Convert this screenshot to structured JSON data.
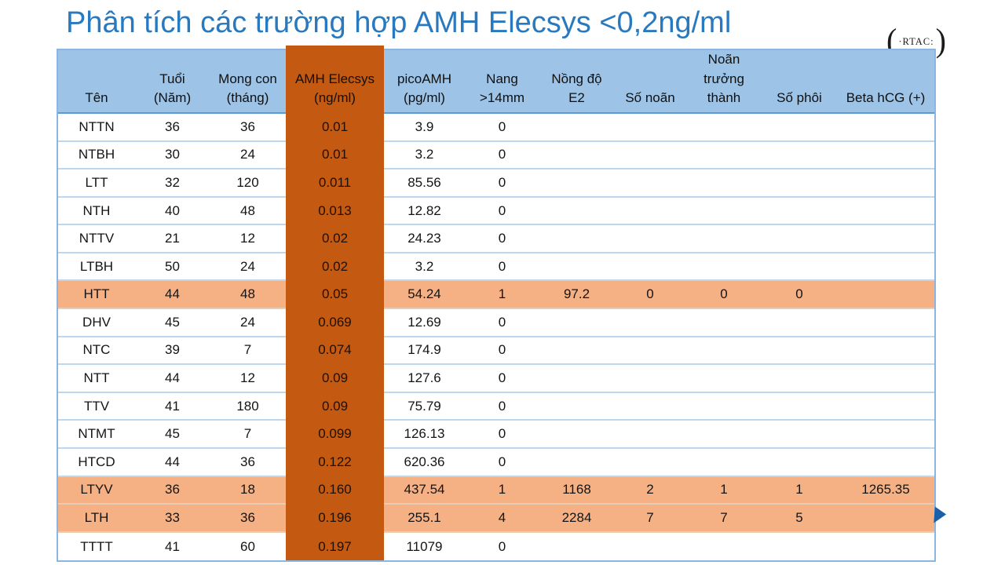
{
  "title": "Phân tích các trường hợp AMH Elecsys <0,2ng/ml",
  "logo": {
    "left_paren": "(",
    "text": "·RTAC:",
    "right_paren": ")"
  },
  "colors": {
    "title": "#2979BF",
    "header_bg": "#9DC3E6",
    "amh_column_bg": "#C45911",
    "highlight_row_bg": "#F5B183",
    "table_border": "#8CB5DF",
    "row_separator": "#BDD7EE",
    "header_separator": "#5B9BD5",
    "arrow": "#1C5FA9"
  },
  "table": {
    "columns": [
      {
        "id": "ten",
        "label": "Tên"
      },
      {
        "id": "tuoi-nam",
        "label": "Tuổi\n(Năm)"
      },
      {
        "id": "mong-con-thang",
        "label": "Mong con\n(tháng)"
      },
      {
        "id": "amh-elecsys",
        "label": "AMH Elecsys\n(ng/ml)",
        "highlight": true
      },
      {
        "id": "picoamh",
        "label": "picoAMH\n(pg/ml)"
      },
      {
        "id": "nang-14mm",
        "label": "Nang\n>14mm"
      },
      {
        "id": "nong-do-e2",
        "label": "Nồng độ\nE2"
      },
      {
        "id": "so-noan",
        "label": "Số noãn"
      },
      {
        "id": "noan-truong-thanh",
        "label": "Noãn\ntrưởng\nthành"
      },
      {
        "id": "so-phoi",
        "label": "Số phôi"
      },
      {
        "id": "beta-hcg",
        "label": "Beta hCG (+)"
      }
    ],
    "rows": [
      [
        "NTTN",
        "36",
        "36",
        "0.01",
        "3.9",
        "0",
        "",
        "",
        "",
        "",
        ""
      ],
      [
        "NTBH",
        "30",
        "24",
        "0.01",
        "3.2",
        "0",
        "",
        "",
        "",
        "",
        ""
      ],
      [
        "LTT",
        "32",
        "120",
        "0.011",
        "85.56",
        "0",
        "",
        "",
        "",
        "",
        ""
      ],
      [
        "NTH",
        "40",
        "48",
        "0.013",
        "12.82",
        "0",
        "",
        "",
        "",
        "",
        ""
      ],
      [
        "NTTV",
        "21",
        "12",
        "0.02",
        "24.23",
        "0",
        "",
        "",
        "",
        "",
        ""
      ],
      [
        "LTBH",
        "50",
        "24",
        "0.02",
        "3.2",
        "0",
        "",
        "",
        "",
        "",
        ""
      ],
      [
        "HTT",
        "44",
        "48",
        "0.05",
        "54.24",
        "1",
        "97.2",
        "0",
        "0",
        "0",
        ""
      ],
      [
        "DHV",
        "45",
        "24",
        "0.069",
        "12.69",
        "0",
        "",
        "",
        "",
        "",
        ""
      ],
      [
        "NTC",
        "39",
        "7",
        "0.074",
        "174.9",
        "0",
        "",
        "",
        "",
        "",
        ""
      ],
      [
        "NTT",
        "44",
        "12",
        "0.09",
        "127.6",
        "0",
        "",
        "",
        "",
        "",
        ""
      ],
      [
        "TTV",
        "41",
        "180",
        "0.09",
        "75.79",
        "0",
        "",
        "",
        "",
        "",
        ""
      ],
      [
        "NTMT",
        "45",
        "7",
        "0.099",
        "126.13",
        "0",
        "",
        "",
        "",
        "",
        ""
      ],
      [
        "HTCD",
        "44",
        "36",
        "0.122",
        "620.36",
        "0",
        "",
        "",
        "",
        "",
        ""
      ],
      [
        "LTYV",
        "36",
        "18",
        "0.160",
        "437.54",
        "1",
        "1168",
        "2",
        "1",
        "1",
        "1265.35"
      ],
      [
        "LTH",
        "33",
        "36",
        "0.196",
        "255.1",
        "4",
        "2284",
        "7",
        "7",
        "5",
        ""
      ],
      [
        "TTTT",
        "41",
        "60",
        "0.197",
        "11079",
        "0",
        "",
        "",
        "",
        "",
        ""
      ]
    ],
    "highlighted_row_indices": [
      6,
      13,
      14
    ]
  }
}
